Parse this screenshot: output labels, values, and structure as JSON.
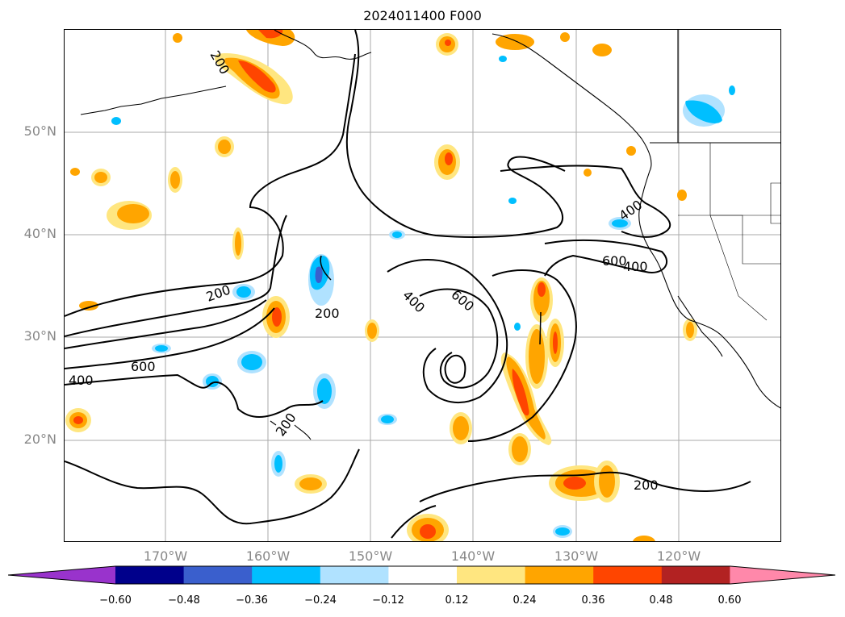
{
  "title": "2024011400 F000",
  "lat_labels": [
    "50°N",
    "40°N",
    "30°N",
    "20°N"
  ],
  "lon_labels": [
    "170°W",
    "160°W",
    "150°W",
    "140°W",
    "130°W",
    "120°W"
  ],
  "contour_labels": [
    "200",
    "200",
    "200",
    "200",
    "200",
    "400",
    "400",
    "400",
    "400",
    "600",
    "600",
    "600"
  ],
  "colorbar": {
    "ticks": [
      "−0.60",
      "−0.48",
      "−0.36",
      "−0.24",
      "−0.12",
      "0.12",
      "0.24",
      "0.36",
      "0.48",
      "0.60"
    ],
    "colors": [
      "#9933cc",
      "#00008b",
      "#3a5fcd",
      "#00bfff",
      "#b0e2ff",
      "#ffffff",
      "#ffe680",
      "#ffa500",
      "#ff4500",
      "#b22222",
      "#ff88aa"
    ]
  },
  "colors": {
    "positive_fill": "#ffa500",
    "positive_core": "#ff4500",
    "negative_fill": "#00bfff",
    "negative_core": "#3a5fcd",
    "grid": "#aaaaaa"
  }
}
